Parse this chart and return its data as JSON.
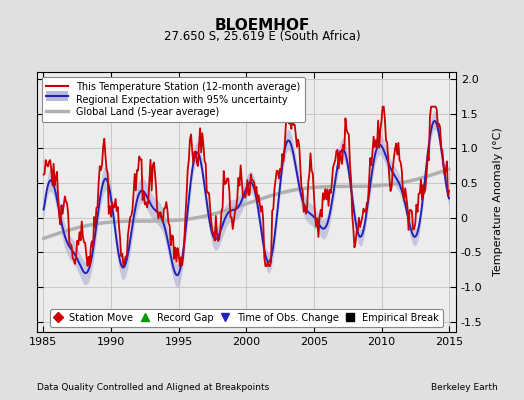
{
  "title": "BLOEMHOF",
  "subtitle": "27.650 S, 25.619 E (South Africa)",
  "ylabel": "Temperature Anomaly (°C)",
  "xlabel_left": "Data Quality Controlled and Aligned at Breakpoints",
  "xlabel_right": "Berkeley Earth",
  "xlim": [
    1984.5,
    2015.5
  ],
  "ylim": [
    -1.65,
    2.1
  ],
  "yticks": [
    -1.5,
    -1.0,
    -0.5,
    0.0,
    0.5,
    1.0,
    1.5,
    2.0
  ],
  "xticks": [
    1985,
    1990,
    1995,
    2000,
    2005,
    2010,
    2015
  ],
  "bg_color": "#e0e0e0",
  "plot_bg_color": "#ececec",
  "legend_items": [
    {
      "label": "This Temperature Station (12-month average)",
      "color": "#cc0000",
      "lw": 1.5
    },
    {
      "label": "Regional Expectation with 95% uncertainty",
      "color": "#2222bb",
      "lw": 1.5
    },
    {
      "label": "Global Land (5-year average)",
      "color": "#b0b0b0",
      "lw": 2.5
    }
  ],
  "bottom_legend": [
    {
      "label": "Station Move",
      "color": "#cc0000",
      "marker": "D"
    },
    {
      "label": "Record Gap",
      "color": "#009900",
      "marker": "^"
    },
    {
      "label": "Time of Obs. Change",
      "color": "#2222bb",
      "marker": "v"
    },
    {
      "label": "Empirical Break",
      "color": "#000000",
      "marker": "s"
    }
  ],
  "uncertainty_color": "#9999cc",
  "uncertainty_alpha": 0.45,
  "grid_color": "#bbbbbb",
  "regional_color": "#2222bb",
  "station_color": "#cc0000",
  "global_color": "#b0b0b0"
}
